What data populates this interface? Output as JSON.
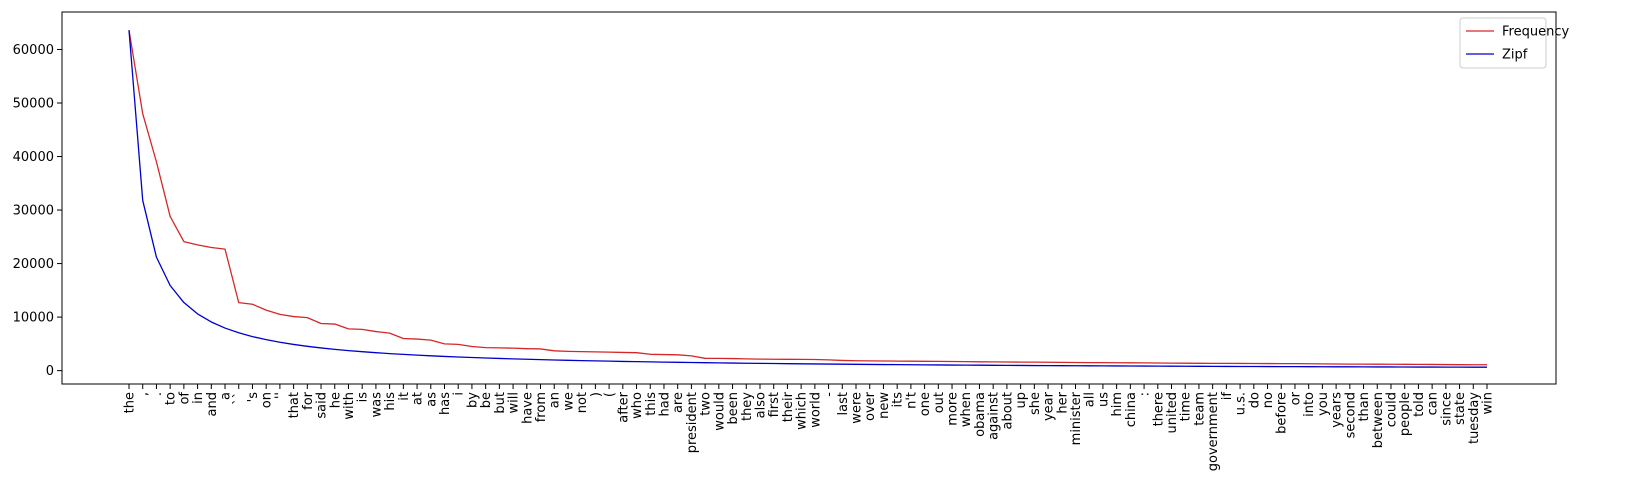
{
  "chart_data": {
    "type": "line",
    "title": "",
    "xlabel": "",
    "ylabel": "",
    "ylim": [
      -2500,
      67000
    ],
    "yticks": [
      0,
      10000,
      20000,
      30000,
      40000,
      50000,
      60000
    ],
    "grid": false,
    "legend_position": "top-right",
    "categories": [
      "the",
      ",",
      ".",
      "to",
      "of",
      "in",
      "and",
      "a",
      "``",
      "'s",
      "on",
      "''",
      "that",
      "for",
      "said",
      "he",
      "with",
      "is",
      "was",
      "his",
      "it",
      "at",
      "as",
      "has",
      "i",
      "by",
      "be",
      "but",
      "will",
      "have",
      "from",
      "an",
      "we",
      "not",
      ")",
      "(",
      "after",
      "who",
      "this",
      "had",
      "are",
      "president",
      "two",
      "would",
      "been",
      "they",
      "also",
      "first",
      "their",
      "which",
      "world",
      "-",
      "last",
      "were",
      "over",
      "new",
      "its",
      "n't",
      "one",
      "out",
      "more",
      "when",
      "obama",
      "against",
      "about",
      "up",
      "she",
      "year",
      "her",
      "minister",
      "all",
      "us",
      "him",
      "china",
      ":",
      "there",
      "united",
      "time",
      "team",
      "government",
      "if",
      "u.s.",
      "do",
      "no",
      "before",
      "or",
      "into",
      "you",
      "years",
      "second",
      "than",
      "between",
      "could",
      "people",
      "told",
      "can",
      "since",
      "state",
      "tuesday",
      "win"
    ],
    "series": [
      {
        "name": "Frequency",
        "color": "#d62728",
        "values": [
          63600,
          48000,
          39000,
          28800,
          24100,
          23500,
          23000,
          22700,
          12700,
          12400,
          11300,
          10500,
          10100,
          9900,
          8800,
          8700,
          7800,
          7700,
          7300,
          7000,
          6000,
          5900,
          5700,
          5000,
          4900,
          4500,
          4300,
          4250,
          4200,
          4100,
          4050,
          3700,
          3600,
          3550,
          3500,
          3450,
          3400,
          3350,
          3050,
          3000,
          2950,
          2750,
          2300,
          2280,
          2250,
          2200,
          2150,
          2130,
          2110,
          2100,
          2080,
          2000,
          1900,
          1850,
          1820,
          1800,
          1780,
          1760,
          1740,
          1720,
          1700,
          1680,
          1650,
          1630,
          1610,
          1590,
          1580,
          1560,
          1540,
          1520,
          1500,
          1490,
          1470,
          1460,
          1440,
          1420,
          1400,
          1390,
          1370,
          1360,
          1350,
          1340,
          1330,
          1320,
          1310,
          1300,
          1280,
          1260,
          1240,
          1220,
          1210,
          1200,
          1190,
          1180,
          1170,
          1150,
          1130,
          1110,
          1100,
          1090
        ]
      },
      {
        "name": "Zipf",
        "color": "#0000cc",
        "values": [
          63600,
          31800,
          21200,
          15900,
          12720,
          10600,
          9086,
          7950,
          7067,
          6360,
          5782,
          5300,
          4892,
          4543,
          4240,
          3975,
          3741,
          3533,
          3347,
          3180,
          3029,
          2891,
          2765,
          2650,
          2544,
          2446,
          2356,
          2271,
          2193,
          2120,
          2052,
          1988,
          1927,
          1871,
          1817,
          1767,
          1719,
          1674,
          1631,
          1590,
          1551,
          1514,
          1479,
          1445,
          1413,
          1383,
          1353,
          1325,
          1298,
          1272,
          1247,
          1223,
          1200,
          1178,
          1156,
          1136,
          1116,
          1097,
          1078,
          1060,
          1043,
          1026,
          1010,
          994,
          978,
          964,
          949,
          935,
          922,
          909,
          896,
          883,
          871,
          859,
          848,
          837,
          826,
          815,
          805,
          795,
          785,
          776,
          766,
          757,
          748,
          740,
          731,
          723,
          715,
          707,
          699,
          691,
          684,
          677,
          669,
          663,
          656,
          649,
          642,
          636
        ]
      }
    ]
  }
}
